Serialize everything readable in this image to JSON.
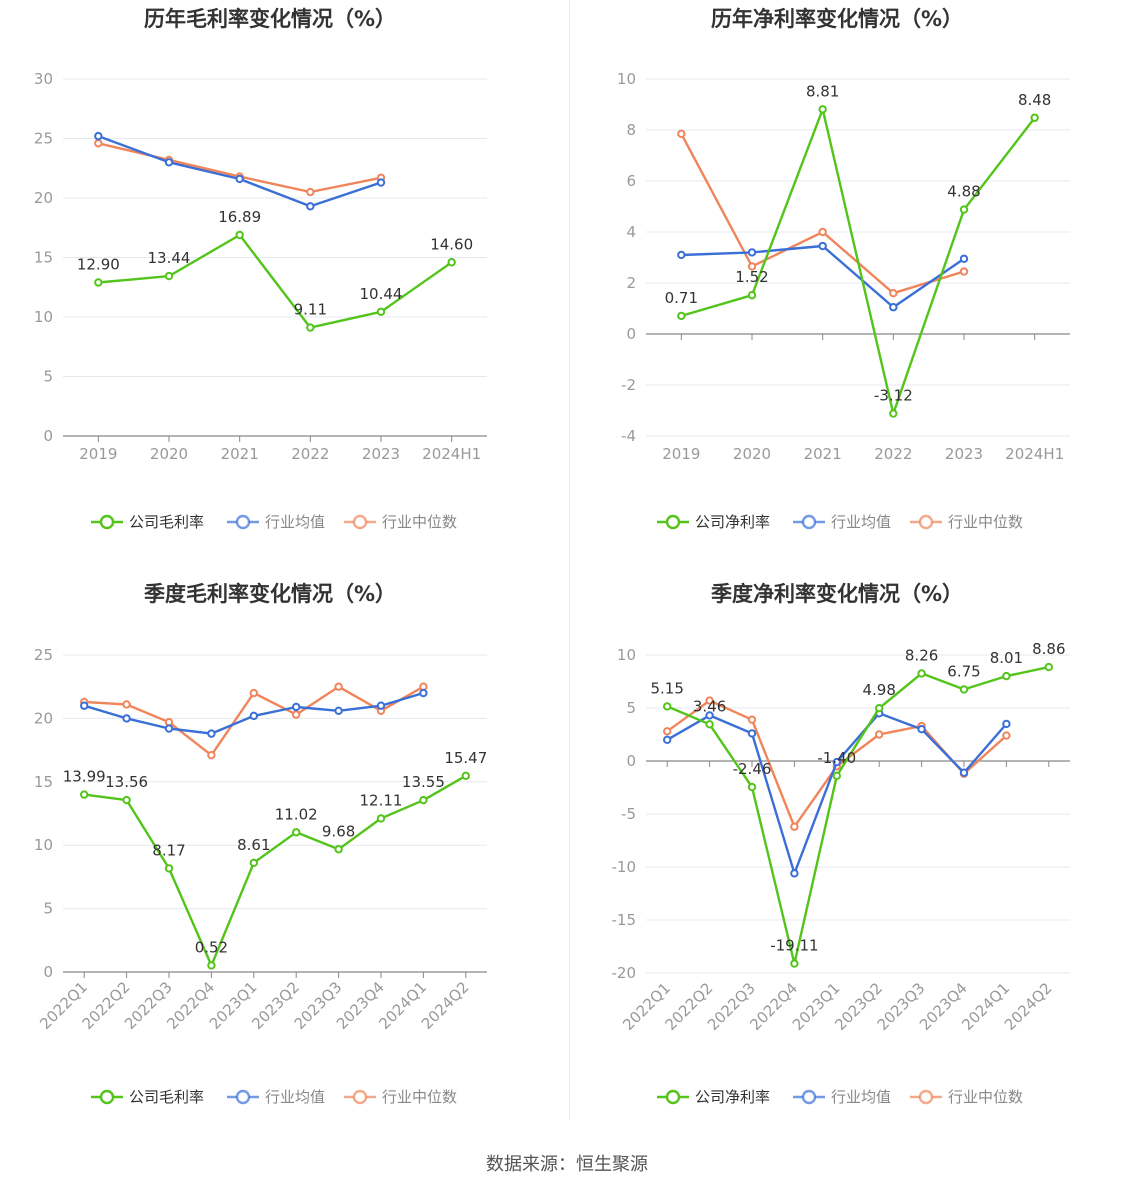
{
  "footer": {
    "source": "数据来源：恒生聚源"
  },
  "colors": {
    "company": "#52c41a",
    "avg": "#3a6fd8",
    "median": "#f0845a",
    "grid": "#e6e8f0",
    "axis": "#999999",
    "label": "#333333",
    "title": "#333333"
  },
  "charts": [
    {
      "id": "annual-gross",
      "title": "历年毛利率变化情况（%）",
      "chart_data": {
        "type": "line",
        "title": "历年毛利率变化情况（%）",
        "categories": [
          "2019",
          "2020",
          "2021",
          "2022",
          "2023",
          "2024H1"
        ],
        "ylim": [
          0,
          30
        ],
        "yticks": [
          0,
          5,
          10,
          15,
          20,
          25,
          30
        ],
        "ytick_labels": [
          "0",
          "5",
          "10",
          "15",
          "20",
          "25",
          "30"
        ],
        "rotate_x_labels": false,
        "grid": true,
        "legend_position": "bottom",
        "series": [
          {
            "name": "公司毛利率",
            "role": "company",
            "values": [
              12.9,
              13.44,
              16.89,
              9.11,
              10.44,
              14.6
            ],
            "labels": [
              "12.90",
              "13.44",
              "16.89",
              "9.11",
              "10.44",
              "14.60"
            ]
          },
          {
            "name": "行业均值",
            "role": "avg",
            "values": [
              25.2,
              23.0,
              21.6,
              19.3,
              21.3,
              null
            ],
            "labels": []
          },
          {
            "name": "行业中位数",
            "role": "median",
            "values": [
              24.6,
              23.2,
              21.8,
              20.5,
              21.7,
              null
            ],
            "labels": []
          }
        ]
      }
    },
    {
      "id": "annual-net",
      "title": "历年净利率变化情况（%）",
      "chart_data": {
        "type": "line",
        "title": "历年净利率变化情况（%）",
        "categories": [
          "2019",
          "2020",
          "2021",
          "2022",
          "2023",
          "2024H1"
        ],
        "ylim": [
          -4,
          10
        ],
        "yticks": [
          -4,
          -2,
          0,
          2,
          4,
          6,
          8,
          10
        ],
        "ytick_labels": [
          "-4",
          "-2",
          "0",
          "2",
          "4",
          "6",
          "8",
          "10"
        ],
        "rotate_x_labels": false,
        "grid": true,
        "legend_position": "bottom",
        "series": [
          {
            "name": "公司净利率",
            "role": "company",
            "values": [
              0.71,
              1.52,
              8.81,
              -3.12,
              4.88,
              8.48
            ],
            "labels": [
              "0.71",
              "1.52",
              "8.81",
              "-3.12",
              "4.88",
              "8.48"
            ]
          },
          {
            "name": "行业均值",
            "role": "avg",
            "values": [
              3.1,
              3.2,
              3.45,
              1.05,
              2.95,
              null
            ],
            "labels": []
          },
          {
            "name": "行业中位数",
            "role": "median",
            "values": [
              7.85,
              2.65,
              4.0,
              1.6,
              2.45,
              null
            ],
            "labels": []
          }
        ]
      }
    },
    {
      "id": "quarter-gross",
      "title": "季度毛利率变化情况（%）",
      "chart_data": {
        "type": "line",
        "title": "季度毛利率变化情况（%）",
        "categories": [
          "2022Q1",
          "2022Q2",
          "2022Q3",
          "2022Q4",
          "2023Q1",
          "2023Q2",
          "2023Q3",
          "2023Q4",
          "2024Q1",
          "2024Q2"
        ],
        "ylim": [
          0,
          25
        ],
        "yticks": [
          0,
          5,
          10,
          15,
          20,
          25
        ],
        "ytick_labels": [
          "0",
          "5",
          "10",
          "15",
          "20",
          "25"
        ],
        "rotate_x_labels": true,
        "grid": true,
        "legend_position": "bottom",
        "series": [
          {
            "name": "公司毛利率",
            "role": "company",
            "values": [
              13.99,
              13.56,
              8.17,
              0.52,
              8.61,
              11.02,
              9.68,
              12.11,
              13.55,
              15.47
            ],
            "labels": [
              "13.99",
              "13.56",
              "8.17",
              "0.52",
              "8.61",
              "11.02",
              "9.68",
              "12.11",
              "13.55",
              "15.47"
            ]
          },
          {
            "name": "行业均值",
            "role": "avg",
            "values": [
              21.0,
              20.0,
              19.2,
              18.8,
              20.2,
              20.9,
              20.6,
              21.0,
              22.0,
              null
            ],
            "labels": []
          },
          {
            "name": "行业中位数",
            "role": "median",
            "values": [
              21.3,
              21.1,
              19.7,
              17.1,
              22.0,
              20.3,
              22.5,
              20.6,
              22.5,
              null
            ],
            "labels": []
          }
        ]
      }
    },
    {
      "id": "quarter-net",
      "title": "季度净利率变化情况（%）",
      "chart_data": {
        "type": "line",
        "title": "季度净利率变化情况（%）",
        "categories": [
          "2022Q1",
          "2022Q2",
          "2022Q3",
          "2022Q4",
          "2023Q1",
          "2023Q2",
          "2023Q3",
          "2023Q4",
          "2024Q1",
          "2024Q2"
        ],
        "ylim": [
          -20,
          10
        ],
        "yticks": [
          -20,
          -15,
          -10,
          -5,
          0,
          5,
          10
        ],
        "ytick_labels": [
          "-20",
          "-15",
          "-10",
          "-5",
          "0",
          "5",
          "10"
        ],
        "rotate_x_labels": true,
        "grid": true,
        "legend_position": "bottom",
        "series": [
          {
            "name": "公司净利率",
            "role": "company",
            "values": [
              5.15,
              3.46,
              -2.46,
              -19.11,
              -1.4,
              4.98,
              8.26,
              6.75,
              8.01,
              8.86
            ],
            "labels": [
              "5.15",
              "3.46",
              "-2.46",
              "-19.11",
              "-1.40",
              "4.98",
              "8.26",
              "6.75",
              "8.01",
              "8.86"
            ]
          },
          {
            "name": "行业均值",
            "role": "avg",
            "values": [
              2.0,
              4.3,
              2.6,
              -10.6,
              -0.1,
              4.5,
              3.0,
              -1.1,
              3.5,
              null
            ],
            "labels": []
          },
          {
            "name": "行业中位数",
            "role": "median",
            "values": [
              2.8,
              5.7,
              3.9,
              -6.2,
              -0.5,
              2.5,
              3.3,
              -1.2,
              2.4,
              null
            ],
            "labels": []
          }
        ]
      }
    }
  ]
}
